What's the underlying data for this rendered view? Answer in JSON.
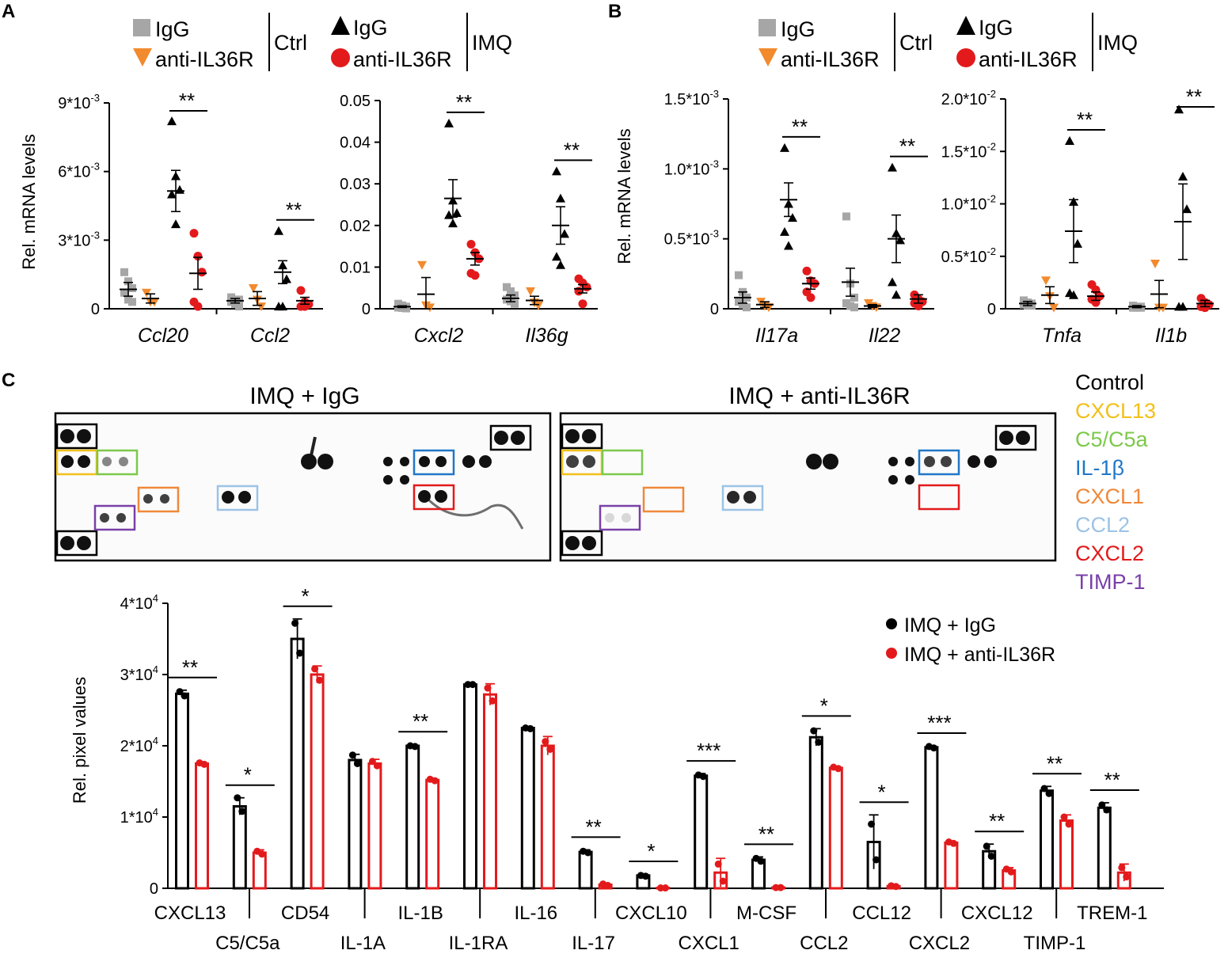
{
  "panel_labels": {
    "a": "A",
    "b": "B",
    "c": "C"
  },
  "legend": {
    "ctrl_igg": "IgG",
    "ctrl_anti": "anti-IL36R",
    "ctrl_group": "Ctrl",
    "imq_igg": "IgG",
    "imq_anti": "anti-IL36R",
    "imq_group": "IMQ"
  },
  "colors": {
    "ctrl_igg": "#a6a6a6",
    "ctrl_anti": "#f28a2e",
    "imq_igg": "#000000",
    "imq_anti": "#e31a1c",
    "bar_igg": "#000000",
    "bar_anti": "#e31a1c"
  },
  "ylabel_mrna": "Rel. mRNA levels",
  "blot": {
    "left_title": "IMQ + IgG",
    "right_title": "IMQ + anti-IL36R",
    "legend": [
      {
        "label": "Control",
        "color": "#000000"
      },
      {
        "label": "CXCL13",
        "color": "#f2c01a"
      },
      {
        "label": "C5/C5a",
        "color": "#7cc94b"
      },
      {
        "label": "IL-1β",
        "color": "#1f77c8"
      },
      {
        "label": "CXCL1",
        "color": "#f0883a"
      },
      {
        "label": "CCL2",
        "color": "#9cc3e6"
      },
      {
        "label": "CXCL2",
        "color": "#e31a1c"
      },
      {
        "label": "TIMP-1",
        "color": "#7a3fa8"
      }
    ]
  },
  "chart_data": [
    {
      "id": "a1",
      "type": "scatter",
      "ylabel": "Rel. mRNA levels",
      "ylim": [
        0,
        0.009
      ],
      "yticks": [
        "0",
        "3*10",
        "6*10",
        "9*10"
      ],
      "ytick_values": [
        0,
        0.003,
        0.006,
        0.009
      ],
      "ytick_exp": [
        "",
        "-3",
        "-3",
        "-3"
      ],
      "genes": [
        "Ccl20",
        "Ccl2"
      ],
      "series_names": [
        "IgG Ctrl",
        "anti-IL36R Ctrl",
        "IgG IMQ",
        "anti-IL36R IMQ"
      ],
      "means": [
        [
          0.00085,
          0.00045,
          0.00515,
          0.00155
        ],
        [
          0.00035,
          0.00045,
          0.0016,
          0.00035
        ]
      ],
      "sems": [
        [
          0.0003,
          0.0002,
          0.0009,
          0.0007
        ],
        [
          0.0001,
          0.0003,
          0.0005,
          0.00015
        ]
      ],
      "points": [
        [
          [
            0.0016,
            0.0012,
            0.0009,
            0.0007,
            0.0004,
            0.0003
          ],
          [
            0.0007,
            0.0003,
            0.0003
          ],
          [
            0.0082,
            0.0058,
            0.0052,
            0.005,
            0.0037
          ],
          [
            0.0033,
            0.0023,
            0.0016,
            0.0003,
            0.0001
          ]
        ],
        [
          [
            0.0005,
            0.0004,
            0.0004,
            0.0003,
            0.0002,
            0.0001
          ],
          [
            0.0009,
            0.0004,
            0.0001
          ],
          [
            0.0034,
            0.0019,
            0.0013,
            0.0001,
            0.0001
          ],
          [
            0.0008,
            0.0003,
            0.0002,
            0.0001,
            0.0001
          ]
        ]
      ],
      "sig": [
        "**",
        "**"
      ]
    },
    {
      "id": "a2",
      "type": "scatter",
      "ylim": [
        0,
        0.05
      ],
      "yticks": [
        "0",
        "0.01",
        "0.02",
        "0.03",
        "0.04",
        "0.05"
      ],
      "ytick_values": [
        0,
        0.01,
        0.02,
        0.03,
        0.04,
        0.05
      ],
      "ytick_exp": [
        "",
        "",
        "",
        "",
        "",
        ""
      ],
      "genes": [
        "Cxcl2",
        "Il36g"
      ],
      "means": [
        [
          0.0005,
          0.0035,
          0.0265,
          0.012
        ],
        [
          0.0025,
          0.002,
          0.02,
          0.0048
        ]
      ],
      "sems": [
        [
          0.0002,
          0.004,
          0.0045,
          0.0015
        ],
        [
          0.0008,
          0.001,
          0.0045,
          0.001
        ]
      ],
      "points": [
        [
          [
            0.0012,
            0.0008,
            0.0005,
            0.0003,
            0.0002,
            0.0001
          ],
          [
            0.0105,
            0.0008,
            0.0003
          ],
          [
            0.0445,
            0.026,
            0.023,
            0.0225,
            0.0205
          ],
          [
            0.0155,
            0.0135,
            0.012,
            0.0085,
            0.008
          ]
        ],
        [
          [
            0.0052,
            0.0042,
            0.0032,
            0.0022,
            0.0018,
            0.0012
          ],
          [
            0.0042,
            0.0015,
            0.0008
          ],
          [
            0.033,
            0.0265,
            0.018,
            0.0125,
            0.0105
          ],
          [
            0.0072,
            0.0062,
            0.0052,
            0.0042,
            0.0012
          ]
        ]
      ],
      "sig": [
        "**",
        "**"
      ]
    },
    {
      "id": "b1",
      "type": "scatter",
      "ylabel": "Rel. mRNA levels",
      "ylim": [
        0,
        0.0015
      ],
      "yticks": [
        "0",
        "0.5*10",
        "1.0*10",
        "1.5*10"
      ],
      "ytick_values": [
        0,
        0.0005,
        0.001,
        0.0015
      ],
      "ytick_exp": [
        "",
        "-3",
        "-3",
        "-3"
      ],
      "genes": [
        "Il17a",
        "Il22"
      ],
      "means": [
        [
          8e-05,
          3e-05,
          0.00078,
          0.00018
        ],
        [
          0.00019,
          2e-05,
          0.0005,
          7e-05
        ]
      ],
      "sems": [
        [
          4e-05,
          2e-05,
          0.00012,
          4e-05
        ],
        [
          0.0001,
          1e-05,
          0.00017,
          3e-05
        ]
      ],
      "points": [
        [
          [
            0.00024,
            0.00012,
            8e-05,
            5e-05,
            3e-05,
            1e-05
          ],
          [
            5e-05,
            2e-05,
            1e-05
          ],
          [
            0.00115,
            0.00075,
            0.00065,
            0.00055,
            0.00045
          ],
          [
            0.00027,
            0.0002,
            0.00018,
            0.00012,
            8e-05
          ]
        ],
        [
          [
            0.00066,
            0.00018,
            8e-05,
            4e-05,
            2e-05,
            1e-05
          ],
          [
            4e-05,
            2e-05,
            1e-05
          ],
          [
            0.00101,
            0.00054,
            0.00049,
            0.00019,
            0.0001
          ],
          [
            0.0001,
            7e-05,
            5e-05,
            4e-05,
            2e-05
          ]
        ]
      ],
      "sig": [
        "**",
        "**"
      ]
    },
    {
      "id": "b2",
      "type": "scatter",
      "ylim": [
        0,
        0.02
      ],
      "yticks": [
        "0",
        "0.5*10",
        "1.0*10",
        "1.5*10",
        "2.0*10"
      ],
      "ytick_values": [
        0,
        0.005,
        0.01,
        0.015,
        0.02
      ],
      "ytick_exp": [
        "",
        "-2",
        "-2",
        "-2",
        "-2"
      ],
      "genes": [
        "Tnfa",
        "Il1b"
      ],
      "means": [
        [
          0.0005,
          0.0013,
          0.0074,
          0.0012
        ],
        [
          0.0002,
          0.0014,
          0.0083,
          0.0005
        ]
      ],
      "sems": [
        [
          0.0002,
          0.0008,
          0.003,
          0.0004
        ],
        [
          0.0001,
          0.0013,
          0.0036,
          0.0003
        ]
      ],
      "points": [
        [
          [
            0.0008,
            0.0006,
            0.0005,
            0.0004,
            0.0003,
            0.0003
          ],
          [
            0.0027,
            0.0012,
            0.0001
          ],
          [
            0.016,
            0.0102,
            0.0062,
            0.0015,
            0.0013
          ],
          [
            0.0023,
            0.0018,
            0.0012,
            0.0009,
            0.0006
          ]
        ],
        [
          [
            0.0003,
            0.0002,
            0.0002,
            0.0001,
            0.0001,
            0.0001
          ],
          [
            0.0043,
            0.0001,
            0.0001
          ],
          [
            0.019,
            0.0126,
            0.0095,
            0.0002,
            0.0002
          ],
          [
            0.001,
            0.0006,
            0.0004,
            0.0002,
            0.0001
          ]
        ]
      ],
      "sig": [
        "**",
        "**"
      ]
    },
    {
      "id": "c",
      "type": "bar",
      "ylabel": "Rel. pixel values",
      "ylim": [
        0,
        40000
      ],
      "yticks": [
        "0",
        "1*10",
        "2*10",
        "3*10",
        "4*10"
      ],
      "ytick_values": [
        0,
        10000,
        20000,
        30000,
        40000
      ],
      "ytick_exp": [
        "",
        "4",
        "4",
        "4",
        "4"
      ],
      "series": [
        {
          "name": "IMQ + IgG"
        },
        {
          "name": "IMQ + anti-IL36R"
        }
      ],
      "categories": [
        "CXCL13",
        "C5/C5a",
        "CD54",
        "IL-1A",
        "IL-1B",
        "IL-1RA",
        "IL-16",
        "IL-17",
        "CXCL10",
        "CXCL1",
        "M-CSF",
        "CCL2",
        "CCL12",
        "CXCL2",
        "CXCL12",
        "TIMP-1",
        "TREM-1"
      ],
      "label_row": [
        "top",
        "bottom",
        "top",
        "bottom",
        "top",
        "bottom",
        "top",
        "bottom",
        "top",
        "bottom",
        "top",
        "bottom",
        "top",
        "bottom",
        "top",
        "bottom",
        "top"
      ],
      "igg": [
        27300,
        11500,
        35000,
        18000,
        20000,
        28600,
        22500,
        5100,
        1800,
        15800,
        4000,
        21200,
        6500,
        19800,
        5200,
        13700,
        11300
      ],
      "anti": [
        17500,
        5000,
        30000,
        17500,
        15200,
        27200,
        20000,
        500,
        50,
        2200,
        100,
        16900,
        300,
        6400,
        2500,
        9500,
        2200
      ],
      "igg_err": [
        500,
        1200,
        2800,
        800,
        200,
        100,
        200,
        300,
        200,
        300,
        400,
        1200,
        3800,
        200,
        1000,
        600,
        700
      ],
      "anti_err": [
        200,
        400,
        1200,
        600,
        200,
        1500,
        1300,
        200,
        50,
        2000,
        100,
        200,
        200,
        100,
        400,
        800,
        1200
      ],
      "igg_pts": [
        [
          27600,
          27000
        ],
        [
          12700,
          10800
        ],
        [
          37200,
          33000
        ],
        [
          18700,
          17500
        ],
        [
          20000,
          19900
        ],
        [
          28600,
          28600
        ],
        [
          22500,
          22400
        ],
        [
          5200,
          5000
        ],
        [
          1800,
          1700
        ],
        [
          15900,
          15700
        ],
        [
          4200,
          3800
        ],
        [
          22100,
          20500
        ],
        [
          9000,
          4000
        ],
        [
          19900,
          19700
        ],
        [
          5900,
          4500
        ],
        [
          14000,
          13300
        ],
        [
          11700,
          11000
        ]
      ],
      "anti_pts": [
        [
          17600,
          17400
        ],
        [
          5200,
          4800
        ],
        [
          30800,
          29200
        ],
        [
          17800,
          17200
        ],
        [
          15300,
          15100
        ],
        [
          28100,
          26300
        ],
        [
          20600,
          19500
        ],
        [
          600,
          400
        ],
        [
          50,
          50
        ],
        [
          3400,
          1000
        ],
        [
          100,
          100
        ],
        [
          17000,
          16800
        ],
        [
          350,
          250
        ],
        [
          6500,
          6300
        ],
        [
          2700,
          2300
        ],
        [
          10000,
          9000
        ],
        [
          2900,
          1600
        ]
      ],
      "sig": [
        "**",
        "*",
        "*",
        "",
        "**",
        "",
        "",
        "**",
        "*",
        "***",
        "**",
        "*",
        "*",
        "***",
        "**",
        "**",
        "**"
      ]
    }
  ]
}
